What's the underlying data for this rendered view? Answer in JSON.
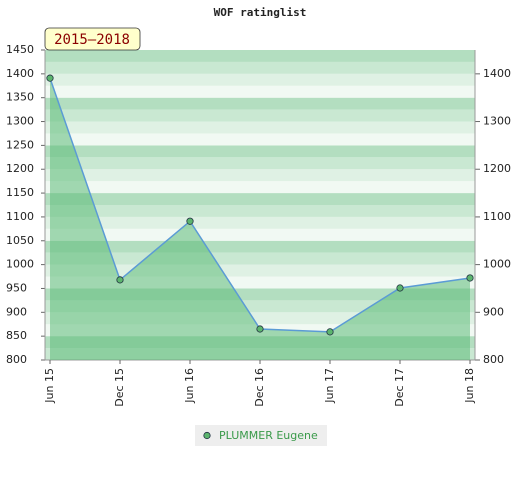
{
  "chart_data": {
    "type": "area",
    "title": "WOF ratinglist",
    "badge": "2015–2018",
    "categories": [
      "Jun 15",
      "Dec 15",
      "Jun 16",
      "Dec 16",
      "Jun 17",
      "Dec 17",
      "Jun 18"
    ],
    "series": [
      {
        "name": "PLUMMER Eugene",
        "color": "#5b9bd5",
        "fill": "#5cbb78",
        "marker_color": "#5cb56e",
        "values": [
          1391,
          968,
          1091,
          865,
          859,
          951,
          972
        ]
      }
    ],
    "ylim": [
      800,
      1450
    ],
    "yticks": [
      800,
      850,
      900,
      950,
      1000,
      1050,
      1100,
      1150,
      1200,
      1250,
      1300,
      1350,
      1400,
      1450
    ],
    "y2lim": [
      800,
      1450
    ],
    "y2ticks": [
      800,
      900,
      1000,
      1100,
      1200,
      1300,
      1400
    ],
    "legend": "bottom"
  }
}
